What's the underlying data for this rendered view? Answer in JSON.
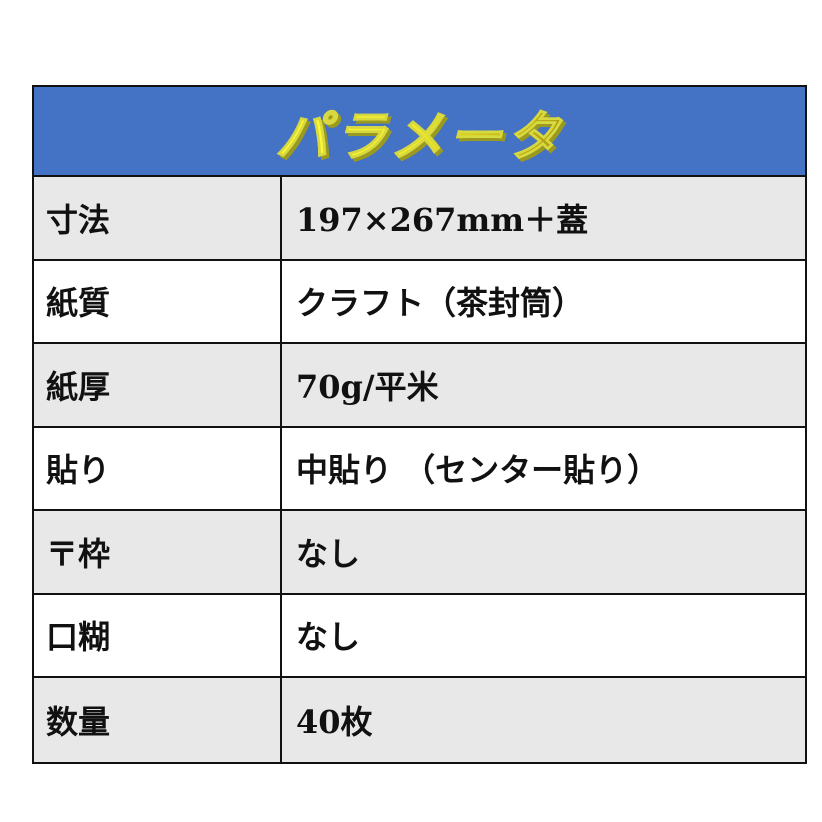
{
  "title": "パラメータ",
  "colors": {
    "header_bg": "#4472c4",
    "title_text": "#ffff33",
    "row_gray": "#e8e8e8"
  },
  "rows": [
    {
      "label": "寸法",
      "value": "197×267mm＋蓋"
    },
    {
      "label": "紙質",
      "value": "クラフト（茶封筒）"
    },
    {
      "label": "紙厚",
      "value": "70g/平米"
    },
    {
      "label": "貼り",
      "value": "中貼り （センター貼り）"
    },
    {
      "label": "〒枠",
      "value": "なし"
    },
    {
      "label": "口糊",
      "value": "なし"
    },
    {
      "label": "数量",
      "value": "40枚"
    }
  ]
}
